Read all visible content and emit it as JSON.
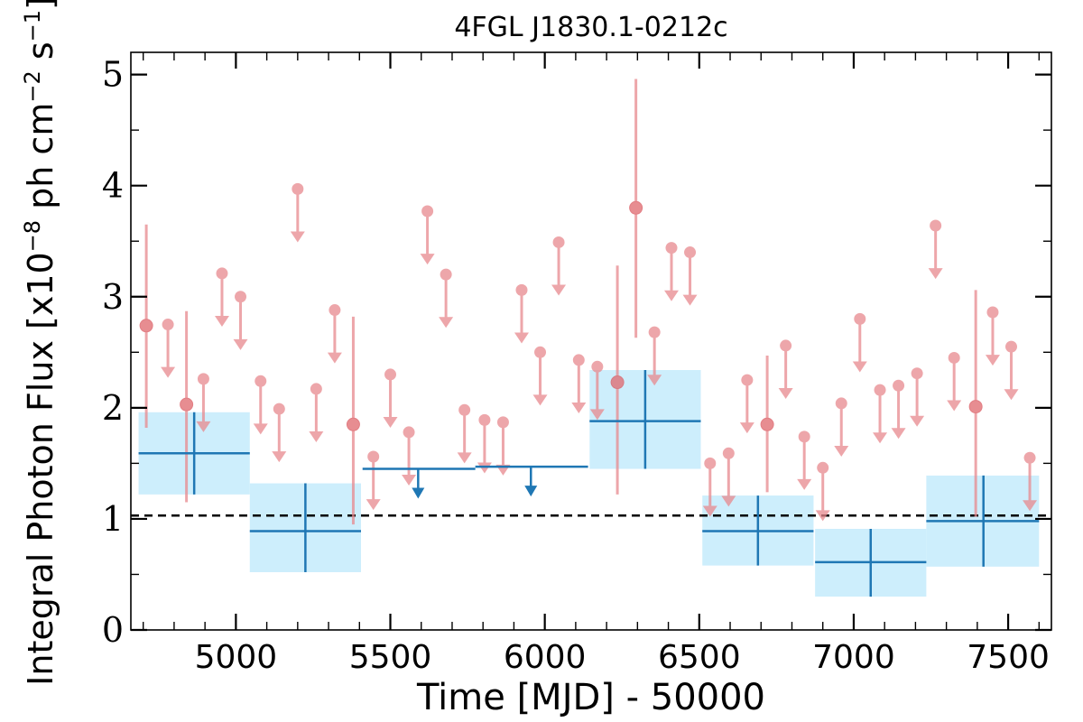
{
  "chart_data": {
    "type": "scatter",
    "title": "4FGL J1830.1-0212c",
    "xlabel": "Time [MJD] - 50000",
    "ylabel_parts": [
      "Integral Photon Flux [x10",
      "−8",
      " ph cm",
      "−2",
      " s",
      "−1",
      "]"
    ],
    "xlim": [
      4660,
      7640
    ],
    "ylim": [
      0,
      5.2
    ],
    "xticks": [
      5000,
      5500,
      6000,
      6500,
      7000,
      7500
    ],
    "yticks": [
      0,
      1,
      2,
      3,
      4,
      5
    ],
    "grid": false,
    "average_flux": 1.03,
    "colors": {
      "long_bins": "#1f77b4",
      "long_bin_band": "#cdeefc",
      "short_bins": "#e8898e",
      "average_line": "#000000"
    },
    "long_bins": [
      {
        "x": 5225,
        "x_start": 5045,
        "x_end": 5405,
        "y": 0.89,
        "y_low": 0.52,
        "y_high": 1.32
      },
      {
        "x": 4865,
        "x_start": 4685,
        "x_end": 5045,
        "y": 1.59,
        "y_low": 1.22,
        "y_high": 1.96
      },
      {
        "x": 6325,
        "x_start": 6145,
        "x_end": 6505,
        "y": 1.88,
        "y_low": 1.45,
        "y_high": 2.34
      },
      {
        "x": 6690,
        "x_start": 6510,
        "x_end": 6870,
        "y": 0.89,
        "y_low": 0.58,
        "y_high": 1.21
      },
      {
        "x": 7055,
        "x_start": 6875,
        "x_end": 7235,
        "y": 0.61,
        "y_low": 0.3,
        "y_high": 0.91
      },
      {
        "x": 7420,
        "x_start": 7235,
        "x_end": 7600,
        "y": 0.98,
        "y_low": 0.57,
        "y_high": 1.39
      }
    ],
    "long_upper_limits": [
      {
        "x": 5590,
        "x_start": 5410,
        "x_end": 5775,
        "y": 1.45
      },
      {
        "x": 5955,
        "x_start": 5775,
        "x_end": 6140,
        "y": 1.47
      }
    ],
    "short_detections": [
      {
        "x": 4710,
        "y": 2.74,
        "y_low": 1.82,
        "y_high": 3.65
      },
      {
        "x": 4840,
        "y": 2.03,
        "y_low": 1.15,
        "y_high": 2.87
      },
      {
        "x": 5380,
        "y": 1.85,
        "y_low": 0.95,
        "y_high": 2.82
      },
      {
        "x": 6235,
        "y": 2.23,
        "y_low": 1.22,
        "y_high": 3.28
      },
      {
        "x": 6295,
        "y": 3.8,
        "y_low": 2.63,
        "y_high": 4.96
      },
      {
        "x": 6720,
        "y": 1.85,
        "y_low": 1.24,
        "y_high": 2.47
      },
      {
        "x": 7395,
        "y": 2.01,
        "y_low": 1.02,
        "y_high": 3.06
      }
    ],
    "short_upper_limits": [
      {
        "x": 4780,
        "y": 2.75
      },
      {
        "x": 4895,
        "y": 2.26
      },
      {
        "x": 4955,
        "y": 3.21
      },
      {
        "x": 5015,
        "y": 3.0
      },
      {
        "x": 5080,
        "y": 2.24
      },
      {
        "x": 5140,
        "y": 1.99
      },
      {
        "x": 5200,
        "y": 3.97
      },
      {
        "x": 5260,
        "y": 2.17
      },
      {
        "x": 5320,
        "y": 2.88
      },
      {
        "x": 5445,
        "y": 1.56
      },
      {
        "x": 5500,
        "y": 2.3
      },
      {
        "x": 5560,
        "y": 1.78
      },
      {
        "x": 5620,
        "y": 3.77
      },
      {
        "x": 5680,
        "y": 3.2
      },
      {
        "x": 5740,
        "y": 1.98
      },
      {
        "x": 5805,
        "y": 1.89
      },
      {
        "x": 5865,
        "y": 1.87
      },
      {
        "x": 5925,
        "y": 3.06
      },
      {
        "x": 5985,
        "y": 2.5
      },
      {
        "x": 6045,
        "y": 3.49
      },
      {
        "x": 6110,
        "y": 2.43
      },
      {
        "x": 6170,
        "y": 2.37
      },
      {
        "x": 6355,
        "y": 2.68
      },
      {
        "x": 6410,
        "y": 3.44
      },
      {
        "x": 6470,
        "y": 3.4
      },
      {
        "x": 6535,
        "y": 1.5
      },
      {
        "x": 6595,
        "y": 1.59
      },
      {
        "x": 6655,
        "y": 2.25
      },
      {
        "x": 6780,
        "y": 2.56
      },
      {
        "x": 6840,
        "y": 1.74
      },
      {
        "x": 6900,
        "y": 1.46
      },
      {
        "x": 6960,
        "y": 2.04
      },
      {
        "x": 7020,
        "y": 2.8
      },
      {
        "x": 7085,
        "y": 2.16
      },
      {
        "x": 7145,
        "y": 2.2
      },
      {
        "x": 7205,
        "y": 2.31
      },
      {
        "x": 7265,
        "y": 3.64
      },
      {
        "x": 7325,
        "y": 2.45
      },
      {
        "x": 7450,
        "y": 2.86
      },
      {
        "x": 7510,
        "y": 2.55
      },
      {
        "x": 7570,
        "y": 1.55
      }
    ]
  }
}
